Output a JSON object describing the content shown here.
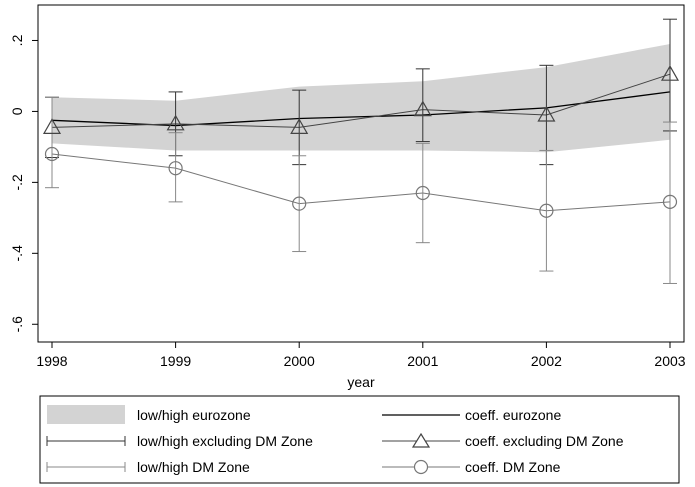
{
  "chart_data": {
    "type": "line",
    "title": "",
    "xlabel": "year",
    "ylabel": "",
    "x": [
      1998,
      1999,
      2000,
      2001,
      2002,
      2003
    ],
    "xlim": [
      1998,
      2003
    ],
    "ylim": [
      -0.65,
      0.3
    ],
    "yticks": [
      0.2,
      0,
      -0.2,
      -0.4,
      -0.6
    ],
    "ytick_labels": [
      ".2",
      "0",
      "-.2",
      "-.4",
      "-.6"
    ],
    "grid": false,
    "legend_position": "bottom",
    "band": {
      "name": "low/high eurozone",
      "low": [
        -0.09,
        -0.11,
        -0.11,
        -0.11,
        -0.115,
        -0.08
      ],
      "high": [
        0.04,
        0.03,
        0.07,
        0.085,
        0.125,
        0.19
      ],
      "color": "#d3d3d3"
    },
    "series": [
      {
        "name": "coeff. eurozone",
        "values": [
          -0.025,
          -0.04,
          -0.02,
          -0.01,
          0.01,
          0.055
        ],
        "marker": "none",
        "color": "#000000"
      },
      {
        "name": "coeff. excluding DM Zone",
        "values": [
          -0.045,
          -0.035,
          -0.045,
          0.005,
          -0.01,
          0.105
        ],
        "marker": "triangle",
        "color": "#444444"
      },
      {
        "name": "coeff. DM Zone",
        "values": [
          -0.12,
          -0.16,
          -0.26,
          -0.23,
          -0.28,
          -0.255
        ],
        "marker": "circle",
        "color": "#777777"
      }
    ],
    "errorbars": [
      {
        "name": "low/high excluding DM Zone",
        "low": [
          -0.13,
          -0.125,
          -0.15,
          -0.085,
          -0.15,
          -0.055
        ],
        "high": [
          0.04,
          0.055,
          0.06,
          0.12,
          0.13,
          0.26
        ],
        "color": "#333333"
      },
      {
        "name": "low/high DM Zone",
        "low": [
          -0.215,
          -0.255,
          -0.395,
          -0.37,
          -0.45,
          -0.485
        ],
        "high": [
          0.04,
          -0.06,
          -0.125,
          -0.09,
          -0.11,
          -0.03
        ],
        "color": "#888888"
      }
    ]
  },
  "legend": {
    "items": [
      {
        "label": "low/high eurozone",
        "kind": "band"
      },
      {
        "label": "coeff. eurozone",
        "kind": "line"
      },
      {
        "label": "low/high excluding DM Zone",
        "kind": "errorbar-dark"
      },
      {
        "label": "coeff. excluding DM Zone",
        "kind": "triangle"
      },
      {
        "label": "low/high DM Zone",
        "kind": "errorbar-light"
      },
      {
        "label": "coeff. DM Zone",
        "kind": "circle"
      }
    ]
  }
}
